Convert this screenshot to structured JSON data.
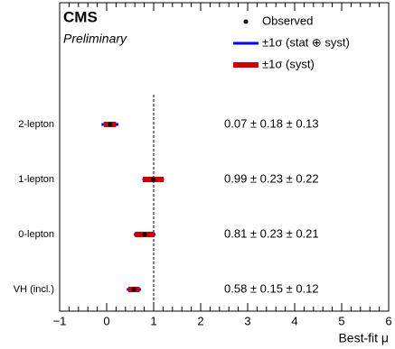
{
  "chart_data": {
    "type": "mu-summary",
    "title": "CMS",
    "subtitle": "Preliminary",
    "categories": [
      "2-lepton",
      "1-lepton",
      "0-lepton",
      "VH (incl.)"
    ],
    "values": [
      0.07,
      0.99,
      0.81,
      0.58
    ],
    "errors_total": [
      0.18,
      0.23,
      0.23,
      0.15
    ],
    "errors_syst": [
      0.13,
      0.22,
      0.21,
      0.12
    ],
    "value_labels": [
      "0.07 ± 0.18 ± 0.13",
      "0.99 ± 0.23 ± 0.22",
      "0.81 ± 0.23 ± 0.21",
      "0.58 ± 0.15 ± 0.12"
    ],
    "legend": {
      "observed": "Observed",
      "total": "±1σ (stat ⊕ syst)",
      "syst": "±1σ (syst)"
    },
    "colors": {
      "observed": "#000000",
      "total": "#0000ff",
      "syst": "#cc0000"
    },
    "reference_line": 1,
    "x_label": "Best-fit μ",
    "xlim": [
      -1,
      6
    ],
    "xticks": [
      {
        "value": -1,
        "label": "−1"
      },
      0,
      1,
      2,
      3,
      4,
      5,
      6
    ]
  }
}
